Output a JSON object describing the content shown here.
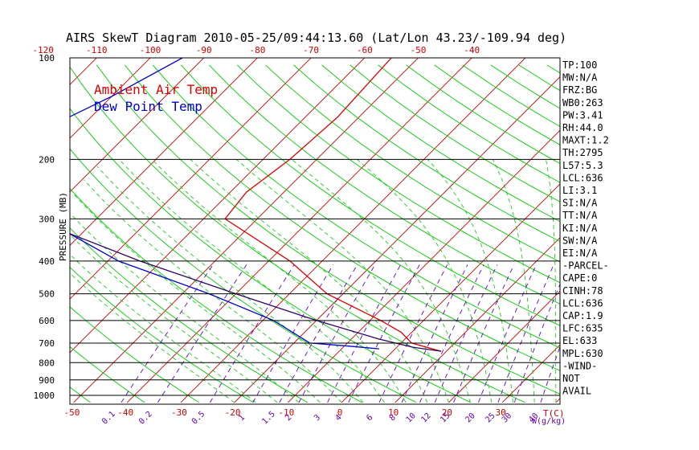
{
  "chart_data": {
    "type": "line",
    "title": "AIRS SkewT Diagram 2010-05-25/09:44:13.60 (Lat/Lon 43.23/-109.94 deg)",
    "ylabel": "PRESSURE (MB)",
    "y_scale": "log",
    "pressure_ticks": [
      "100",
      "200",
      "300",
      "400",
      "500",
      "600",
      "700",
      "800",
      "900",
      "1000"
    ],
    "pressure_levels": [
      100,
      200,
      300,
      400,
      500,
      600,
      700,
      800,
      900,
      1000
    ],
    "top_temp_ticks": [
      "-120",
      "-110",
      "-100",
      "-90",
      "-80",
      "-70",
      "-60",
      "-50",
      "-40"
    ],
    "bottom_temp_ticks": [
      "-50",
      "-40",
      "-30",
      "-20",
      "-10",
      "0",
      "10",
      "20",
      "30"
    ],
    "bottom_temp_unit": "T(C)",
    "mixing_ratio_ticks": [
      "0.1",
      "0.2",
      "0.5",
      "1",
      "1.5",
      "2",
      "3",
      "4",
      "6",
      "8",
      "10",
      "12",
      "15",
      "20",
      "25",
      "30",
      "40"
    ],
    "mixing_ratio_unit": "W(g/kg)",
    "colors": {
      "ambient": "#dd0000",
      "dewpoint": "#0000cc",
      "parcel": "#330066",
      "dry_adiabat": "#00cc00",
      "moist_adiabat": "#00cc00",
      "isotherm": "#cc0000",
      "mixing_ratio": "#6600cc",
      "grid": "#000000"
    },
    "series": [
      {
        "name": "Ambient Air Temp",
        "points": [
          [
            100,
            -55
          ],
          [
            150,
            -54
          ],
          [
            200,
            -55
          ],
          [
            250,
            -57
          ],
          [
            300,
            -56
          ],
          [
            400,
            -36
          ],
          [
            500,
            -23
          ],
          [
            600,
            -8
          ],
          [
            650,
            -2
          ],
          [
            700,
            2
          ],
          [
            740,
            9
          ]
        ]
      },
      {
        "name": "Dew Point Temp",
        "points": [
          [
            100,
            -94
          ],
          [
            130,
            -100
          ],
          [
            160,
            -106
          ],
          [
            200,
            -110
          ],
          [
            250,
            -104
          ],
          [
            300,
            -90
          ],
          [
            400,
            -68
          ],
          [
            500,
            -45
          ],
          [
            600,
            -28
          ],
          [
            700,
            -17
          ],
          [
            715,
            -9
          ],
          [
            728,
            -3
          ]
        ]
      },
      {
        "points": [
          [
            100,
            -135
          ],
          [
            200,
            -114
          ],
          [
            300,
            -92
          ],
          [
            400,
            -64
          ],
          [
            500,
            -40
          ],
          [
            600,
            -20
          ],
          [
            680,
            -5
          ],
          [
            720,
            3
          ],
          [
            740,
            9
          ]
        ]
      }
    ],
    "indices": [
      "TP:100",
      "MW:N/A",
      "FRZ:BG",
      "WB0:263",
      "PW:3.41",
      "RH:44.0",
      "MAXT:1.2",
      "TH:2795",
      "L57:5.3",
      "LCL:636",
      "LI:3.1",
      "SI:N/A",
      "TT:N/A",
      "KI:N/A",
      "SW:N/A",
      "EI:N/A",
      "-PARCEL-",
      "CAPE:0",
      "CINH:78",
      "LCL:636",
      "CAP:1.9",
      "LFC:635",
      "EL:633",
      "MPL:630",
      "-WIND-",
      "NOT",
      "AVAIL"
    ]
  }
}
